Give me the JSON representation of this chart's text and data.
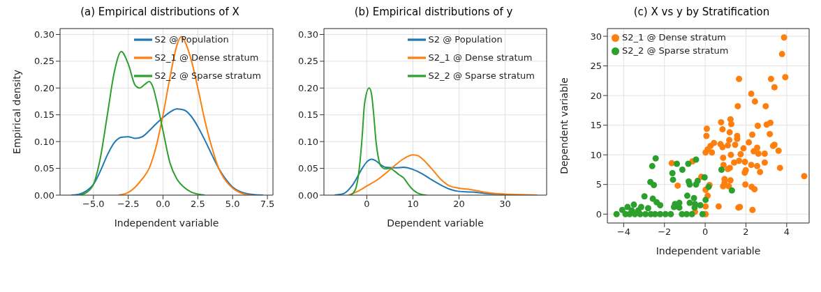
{
  "chart_data": [
    {
      "type": "line",
      "title": "(a) Empirical distributions of X",
      "xlabel": "Independent variable",
      "ylabel": "Empirical density",
      "xlim": [
        -7.4,
        7.9
      ],
      "ylim": [
        0,
        0.311
      ],
      "xticks": [
        {
          "value": -5,
          "label": "−5.0"
        },
        {
          "value": -2.5,
          "label": "−2.5"
        },
        {
          "value": 0,
          "label": "0.0"
        },
        {
          "value": 2.5,
          "label": "2.5"
        },
        {
          "value": 5,
          "label": "5.0"
        },
        {
          "value": 7.5,
          "label": "7.5"
        }
      ],
      "yticks": [
        {
          "value": 0,
          "label": "0.00"
        },
        {
          "value": 0.05,
          "label": "0.05"
        },
        {
          "value": 0.1,
          "label": "0.10"
        },
        {
          "value": 0.15,
          "label": "0.15"
        },
        {
          "value": 0.2,
          "label": "0.20"
        },
        {
          "value": 0.25,
          "label": "0.25"
        },
        {
          "value": 0.3,
          "label": "0.30"
        }
      ],
      "grid": true,
      "legend": "top right",
      "marker": "none",
      "line_style": "solid",
      "series": [
        {
          "name": "S2 @ Population",
          "color": "#1f77b4",
          "x": [
            -6.6,
            -6,
            -5.5,
            -5,
            -4.5,
            -4,
            -3.5,
            -3,
            -2.5,
            -2,
            -1.5,
            -1,
            -0.5,
            0,
            0.5,
            1,
            1.5,
            2,
            2.5,
            3,
            3.5,
            4,
            4.5,
            5,
            5.5,
            6,
            6.5,
            7.2
          ],
          "values": [
            0,
            0.002,
            0.008,
            0.02,
            0.045,
            0.075,
            0.098,
            0.108,
            0.109,
            0.106,
            0.109,
            0.12,
            0.133,
            0.145,
            0.155,
            0.161,
            0.159,
            0.148,
            0.128,
            0.103,
            0.076,
            0.05,
            0.03,
            0.015,
            0.007,
            0.003,
            0.001,
            0
          ]
        },
        {
          "name": "S2_1 @ Dense stratum",
          "color": "#ff7f0e",
          "x": [
            -3.2,
            -2.5,
            -2,
            -1.5,
            -1,
            -0.5,
            0,
            0.5,
            1,
            1.3,
            1.5,
            2,
            2.5,
            3,
            3.5,
            4,
            4.5,
            5,
            5.5,
            6,
            6.4
          ],
          "values": [
            0,
            0.005,
            0.015,
            0.03,
            0.05,
            0.09,
            0.15,
            0.22,
            0.28,
            0.296,
            0.29,
            0.255,
            0.2,
            0.14,
            0.09,
            0.05,
            0.027,
            0.013,
            0.005,
            0.001,
            0
          ]
        },
        {
          "name": "S2_2 @ Sparse stratum",
          "color": "#2ca02c",
          "x": [
            -6,
            -5.5,
            -5,
            -4.5,
            -4,
            -3.5,
            -3,
            -2.5,
            -2,
            -1.7,
            -1.3,
            -1,
            -0.7,
            -0.5,
            0,
            0.5,
            1,
            1.5,
            2,
            2.5,
            3
          ],
          "values": [
            0,
            0.005,
            0.02,
            0.07,
            0.15,
            0.23,
            0.268,
            0.245,
            0.205,
            0.2,
            0.207,
            0.212,
            0.2,
            0.18,
            0.12,
            0.06,
            0.03,
            0.015,
            0.006,
            0.002,
            0
          ]
        }
      ]
    },
    {
      "type": "line",
      "title": "(b) Empirical distributions of y",
      "xlabel": "Dependent variable",
      "xlim": [
        -9.3,
        39
      ],
      "ylim": [
        0,
        0.311
      ],
      "xticks": [
        0,
        10,
        20,
        30
      ],
      "yticks": [
        {
          "value": 0,
          "label": "0.00"
        },
        {
          "value": 0.05,
          "label": "0.05"
        },
        {
          "value": 0.1,
          "label": "0.10"
        },
        {
          "value": 0.15,
          "label": "0.15"
        },
        {
          "value": 0.2,
          "label": "0.20"
        },
        {
          "value": 0.25,
          "label": "0.25"
        },
        {
          "value": 0.3,
          "label": "0.30"
        }
      ],
      "grid": true,
      "legend": "top right",
      "marker": "none",
      "line_style": "solid",
      "series": [
        {
          "name": "S2 @ Population",
          "color": "#1f77b4",
          "x": [
            -7,
            -5,
            -3,
            -1,
            0,
            1,
            2,
            3,
            4,
            6,
            8,
            10,
            12,
            14,
            16,
            18,
            20,
            22,
            24,
            26,
            28,
            30,
            34
          ],
          "values": [
            0,
            0.003,
            0.02,
            0.05,
            0.062,
            0.067,
            0.064,
            0.057,
            0.052,
            0.051,
            0.052,
            0.048,
            0.04,
            0.029,
            0.019,
            0.011,
            0.007,
            0.006,
            0.005,
            0.003,
            0.002,
            0.001,
            0
          ]
        },
        {
          "name": "S2_1 @ Dense stratum",
          "color": "#ff7f0e",
          "x": [
            -4,
            -2,
            0,
            2,
            4,
            6,
            8,
            10,
            11,
            12,
            14,
            16,
            18,
            20,
            22,
            24,
            26,
            28,
            30,
            33,
            37
          ],
          "values": [
            0,
            0.007,
            0.017,
            0.027,
            0.04,
            0.055,
            0.068,
            0.075,
            0.074,
            0.068,
            0.05,
            0.03,
            0.017,
            0.013,
            0.011,
            0.008,
            0.005,
            0.003,
            0.002,
            0.001,
            0
          ]
        },
        {
          "name": "S2_2 @ Sparse stratum",
          "color": "#2ca02c",
          "x": [
            -3.5,
            -2.5,
            -1.5,
            -1,
            -0.5,
            0.5,
            1,
            1.5,
            2,
            2.5,
            3,
            4,
            5,
            6,
            7,
            8,
            9,
            10,
            11,
            12,
            13
          ],
          "values": [
            0,
            0.01,
            0.06,
            0.11,
            0.17,
            0.2,
            0.19,
            0.15,
            0.1,
            0.07,
            0.055,
            0.049,
            0.05,
            0.045,
            0.038,
            0.032,
            0.02,
            0.01,
            0.004,
            0.001,
            0
          ]
        }
      ]
    },
    {
      "type": "scatter",
      "title": "(c) X vs y by Stratification",
      "xlabel": "Independent variable",
      "ylabel": "Dependent variable",
      "xlim": [
        -4.8,
        5.1
      ],
      "ylim": [
        -1.5,
        31.3
      ],
      "xticks": [
        {
          "value": -4,
          "label": "−4"
        },
        {
          "value": -2,
          "label": "−2"
        },
        0,
        2,
        4
      ],
      "yticks": [
        0,
        5,
        10,
        15,
        20,
        25,
        30
      ],
      "grid": true,
      "legend": "top left",
      "marker": "circle",
      "series": [
        {
          "name": "S2_1 @ Dense stratum",
          "color": "#ff7f0e",
          "x": [
            3.87,
            3.77,
            3.93,
            1.66,
            3.23,
            3.4,
            2.26,
            2.44,
            1.6,
            2.97,
            4.86,
            0.78,
            1.24,
            1.28,
            0.08,
            0.06,
            0.85,
            1.2,
            1.57,
            1.57,
            2.31,
            3.17,
            3.02,
            3.2,
            2.58,
            1.18,
            0.43,
            0.75,
            0.26,
            0.12,
            0.02,
            0.33,
            0.85,
            1.11,
            1.47,
            2.14,
            2.55,
            2.38,
            2.61,
            2.92,
            3.33,
            3.4,
            3.6,
            1.26,
            1.74,
            1.88,
            0.88,
            1.42,
            1.66,
            1.95,
            0.9,
            1.11,
            1.21,
            1.99,
            1.94,
            2.26,
            2.55,
            2.69,
            2.92,
            3.67,
            -1.64,
            -0.62,
            -0.19,
            -1.35,
            0.21,
            0.02,
            0.12,
            0.02,
            0.02,
            -0.5,
            0.66,
            1.63,
            1.7,
            2.32,
            0.95,
            1.24,
            0.88,
            0.95,
            1.16,
            1.97,
            2.28,
            2.42
          ],
          "values": [
            29.8,
            27.0,
            23.1,
            22.8,
            22.8,
            21.4,
            20.3,
            19.0,
            18.2,
            18.2,
            6.4,
            15.5,
            16.0,
            15.2,
            14.4,
            13.2,
            14.3,
            13.8,
            13.2,
            12.7,
            13.4,
            13.5,
            15.1,
            15.4,
            14.9,
            12.5,
            12.0,
            11.8,
            11.5,
            10.9,
            10.4,
            10.4,
            11.3,
            11.6,
            11.7,
            12.1,
            11.2,
            10.6,
            10.2,
            10.2,
            11.5,
            11.7,
            10.7,
            10.0,
            10.1,
            11.1,
            9.5,
            8.7,
            9.0,
            8.8,
            8.3,
            7.6,
            7.8,
            7.4,
            7.0,
            8.3,
            8.1,
            7.1,
            8.7,
            7.8,
            8.6,
            8.9,
            6.3,
            4.8,
            4.9,
            4.1,
            3.1,
            1.3,
            0.0,
            0.4,
            1.3,
            1.1,
            1.2,
            0.7,
            5.9,
            5.7,
            4.7,
            5.3,
            4.7,
            5.0,
            4.6,
            4.2
          ]
        },
        {
          "name": "S2_2 @ Sparse stratum",
          "color": "#2ca02c",
          "x": [
            -2.43,
            -2.6,
            -1.39,
            -0.83,
            -0.45,
            -1.12,
            -1.61,
            -1.58,
            0.8,
            -0.03,
            -2.69,
            -2.52,
            -0.81,
            -0.76,
            -0.45,
            -0.37,
            0.17,
            1.31,
            -2.98,
            -2.57,
            -2.38,
            -2.21,
            -0.88,
            -0.55,
            -0.76,
            -0.5,
            -1.48,
            -1.27,
            -1.53,
            -1.27,
            -0.52,
            -0.24,
            0.02,
            -3.5,
            -3.81,
            -3.14,
            -2.8,
            -4.07,
            -3.6,
            -3.29,
            -4.35,
            -3.91,
            -3.71,
            -3.45,
            -3.19,
            -2.93,
            -2.67,
            -2.46,
            -2.21,
            -1.95,
            -1.69,
            -1.14,
            -0.91,
            -0.65,
            -0.13
          ],
          "values": [
            9.4,
            8.1,
            8.5,
            8.5,
            9.2,
            7.5,
            6.9,
            5.8,
            7.5,
            6.2,
            5.4,
            4.9,
            5.5,
            5.0,
            5.0,
            5.6,
            4.6,
            4.0,
            3.0,
            2.6,
            2.0,
            1.5,
            3.1,
            2.7,
            1.9,
            1.7,
            1.7,
            1.9,
            1.2,
            1.1,
            1.1,
            1.5,
            2.4,
            1.6,
            1.2,
            1.2,
            1.0,
            0.7,
            0.6,
            0.6,
            0,
            0,
            0,
            0,
            0,
            0,
            0,
            0,
            0,
            0,
            0,
            0,
            0,
            0,
            0
          ]
        }
      ]
    }
  ]
}
